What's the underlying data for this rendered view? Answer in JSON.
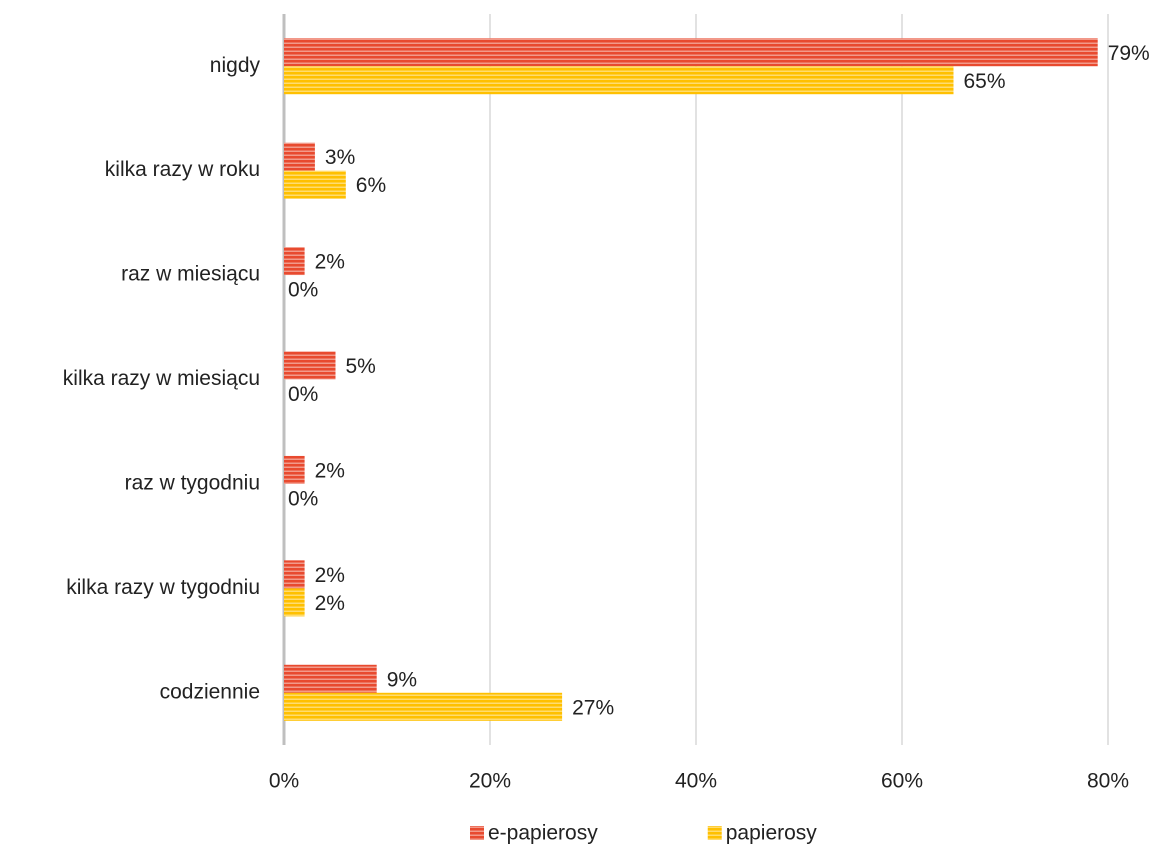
{
  "chart_data": {
    "type": "bar",
    "orientation": "horizontal",
    "categories": [
      "nigdy",
      "kilka razy w roku",
      "raz w miesiącu",
      "kilka razy w miesiącu",
      "raz w tygodniu",
      "kilka razy w tygodniu",
      "codziennie"
    ],
    "series": [
      {
        "name": "e-papierosy",
        "color": "#e84a2f",
        "values": [
          79,
          3,
          2,
          5,
          2,
          2,
          9
        ],
        "value_labels": [
          "79%",
          "3%",
          "2%",
          "5%",
          "2%",
          "2%",
          "9%"
        ]
      },
      {
        "name": "papierosy",
        "color": "#ffc000",
        "values": [
          65,
          6,
          0,
          0,
          0,
          2,
          27
        ],
        "value_labels": [
          "65%",
          "6%",
          "0%",
          "0%",
          "0%",
          "2%",
          "27%"
        ]
      }
    ],
    "xlim": [
      0,
      80
    ],
    "xticks": [
      {
        "value": 0,
        "label": "0%"
      },
      {
        "value": 20,
        "label": "20%"
      },
      {
        "value": 40,
        "label": "40%"
      },
      {
        "value": 60,
        "label": "60%"
      },
      {
        "value": 80,
        "label": "80%"
      }
    ],
    "grid": true,
    "legend": "bottom"
  }
}
